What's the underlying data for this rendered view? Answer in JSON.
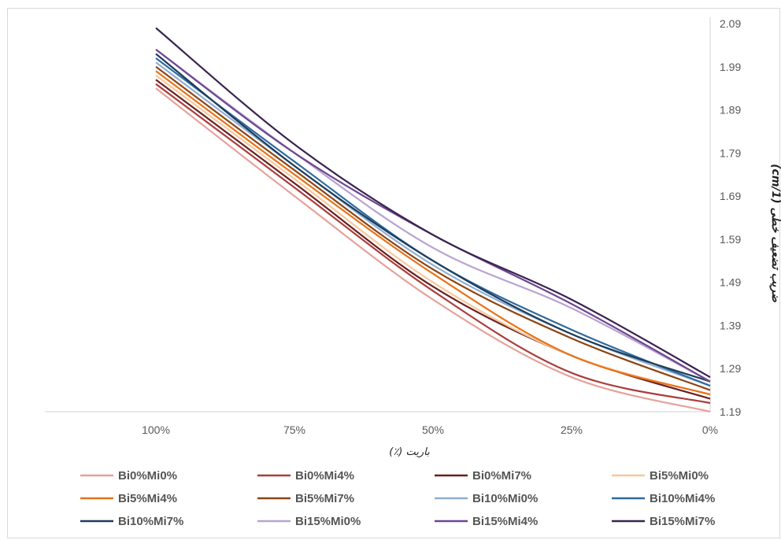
{
  "chart_data": {
    "type": "line",
    "title": "",
    "xlabel": "باریت (٪)",
    "ylabel": "ضریب تضعیف خطی (1/cm)",
    "x_axis_reversed": true,
    "categories": [
      "100%",
      "75%",
      "50%",
      "25%",
      "0%"
    ],
    "ylim": [
      1.19,
      2.09
    ],
    "yticks": [
      "1.19",
      "1.29",
      "1.39",
      "1.49",
      "1.59",
      "1.69",
      "1.79",
      "1.89",
      "1.99",
      "2.09"
    ],
    "grid": false,
    "y_axis_position": "right",
    "legend_position": "bottom",
    "series": [
      {
        "name": "Bi0%Mi0%",
        "color": "#e6a19a",
        "values": [
          1.94,
          1.69,
          1.45,
          1.27,
          1.19
        ]
      },
      {
        "name": "Bi0%Mi4%",
        "color": "#a93e3c",
        "values": [
          1.95,
          1.71,
          1.47,
          1.28,
          1.21
        ]
      },
      {
        "name": "Bi0%Mi7%",
        "color": "#6b1f1f",
        "values": [
          1.96,
          1.72,
          1.48,
          1.32,
          1.22
        ]
      },
      {
        "name": "Bi5%Mi0%",
        "color": "#f8c79a",
        "values": [
          1.97,
          1.73,
          1.49,
          1.32,
          1.23
        ]
      },
      {
        "name": "Bi5%Mi4%",
        "color": "#e87318",
        "values": [
          1.98,
          1.74,
          1.51,
          1.32,
          1.23
        ]
      },
      {
        "name": "Bi5%Mi7%",
        "color": "#8b4513",
        "values": [
          1.99,
          1.75,
          1.52,
          1.36,
          1.24
        ]
      },
      {
        "name": "Bi10%Mi0%",
        "color": "#8faed4",
        "values": [
          2.0,
          1.76,
          1.53,
          1.37,
          1.25
        ]
      },
      {
        "name": "Bi10%Mi4%",
        "color": "#2e6a9e",
        "values": [
          2.01,
          1.77,
          1.54,
          1.38,
          1.25
        ]
      },
      {
        "name": "Bi10%Mi7%",
        "color": "#1e3d5c",
        "values": [
          2.02,
          1.76,
          1.54,
          1.37,
          1.26
        ]
      },
      {
        "name": "Bi15%Mi0%",
        "color": "#b9a3d0",
        "values": [
          2.03,
          1.79,
          1.57,
          1.43,
          1.26
        ]
      },
      {
        "name": "Bi15%Mi4%",
        "color": "#6e4690",
        "values": [
          2.03,
          1.79,
          1.6,
          1.44,
          1.26
        ]
      },
      {
        "name": "Bi15%Mi7%",
        "color": "#3a2450",
        "values": [
          2.08,
          1.81,
          1.6,
          1.45,
          1.27
        ]
      }
    ]
  }
}
